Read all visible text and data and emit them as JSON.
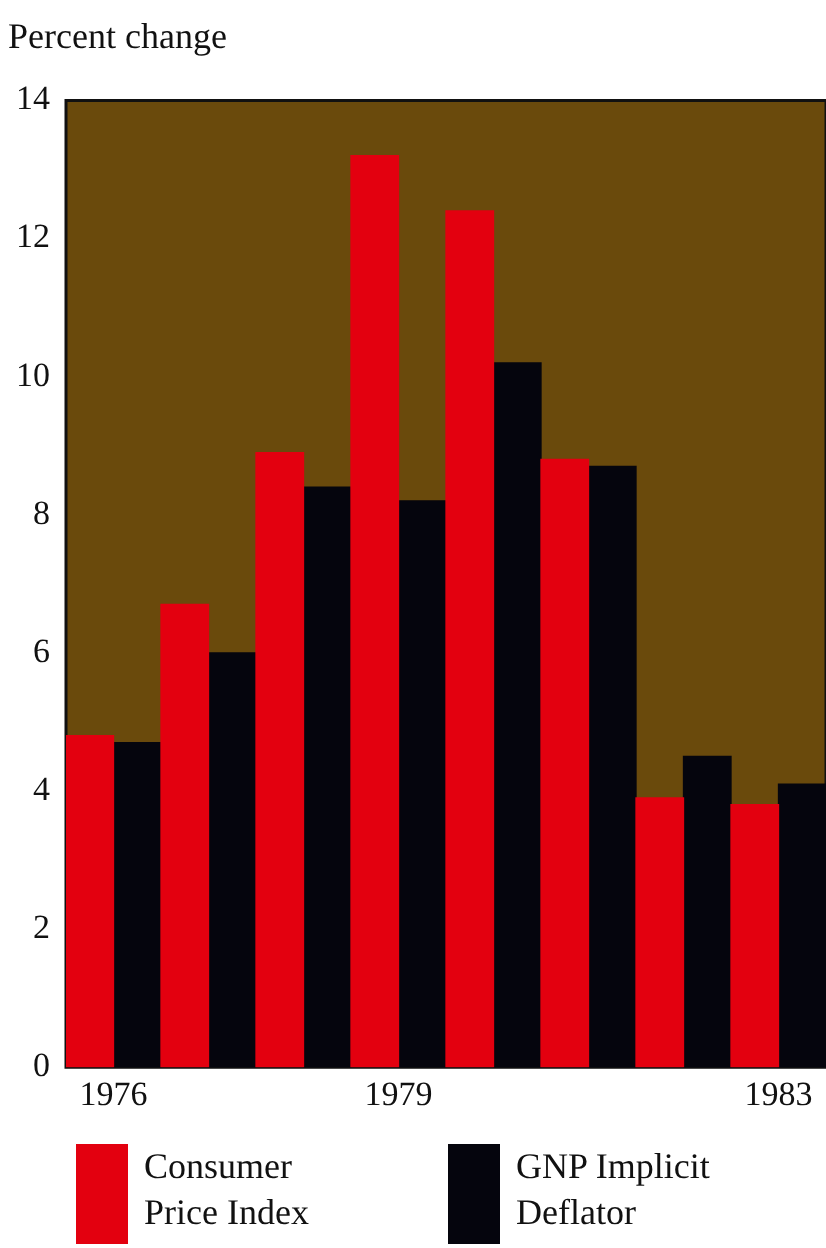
{
  "chart_data": {
    "type": "bar",
    "ylabel": "Percent change",
    "categories": [
      "1976",
      null,
      null,
      "1979",
      null,
      null,
      null,
      "1983"
    ],
    "series": [
      {
        "name": "Consumer Price Index",
        "color": "#e3000f",
        "values": [
          4.8,
          6.7,
          8.9,
          13.2,
          12.4,
          8.8,
          3.9,
          3.8
        ]
      },
      {
        "name": "GNP Implicit Deflator",
        "color": "#05050d",
        "values": [
          4.7,
          6.0,
          8.4,
          8.2,
          10.2,
          8.7,
          4.5,
          4.1
        ]
      }
    ],
    "ylim": [
      0,
      14
    ],
    "yticks": [
      0,
      2,
      4,
      6,
      8,
      10,
      12,
      14
    ],
    "grid": false,
    "legend": "bottom"
  }
}
